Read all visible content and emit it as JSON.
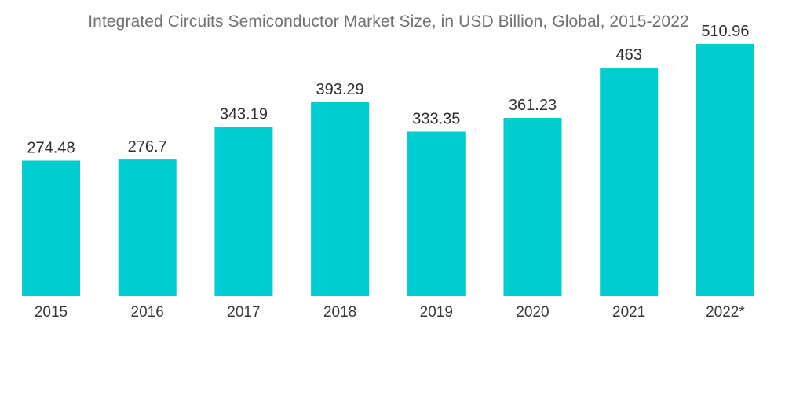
{
  "chart_data": {
    "type": "bar",
    "title": "Integrated Circuits Semiconductor Market Size, in USD Billion, Global, 2015-2022",
    "categories": [
      "2015",
      "2016",
      "2017",
      "2018",
      "2019",
      "2020",
      "2021",
      "2022*"
    ],
    "values": [
      274.48,
      276.7,
      343.19,
      393.29,
      333.35,
      361.23,
      463,
      510.96
    ],
    "value_labels": [
      "274.48",
      "276.7",
      "343.19",
      "393.29",
      "333.35",
      "361.23",
      "463",
      "510.96"
    ],
    "xlabel": "",
    "ylabel": "",
    "ylim": [
      0,
      600
    ],
    "grid": false,
    "legend": "none",
    "bar_color": "#00CDD0"
  }
}
